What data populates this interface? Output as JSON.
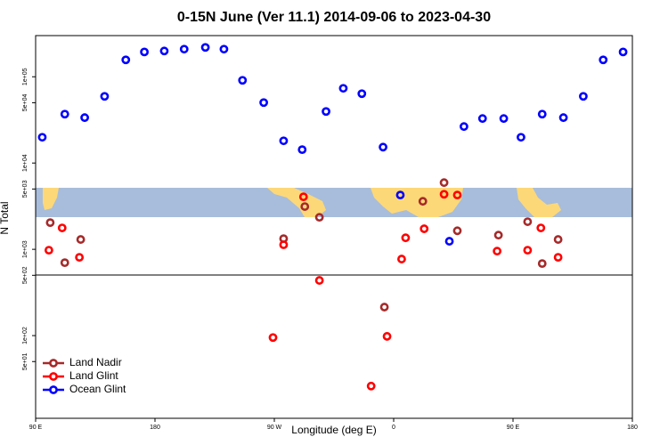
{
  "chart_data": {
    "type": "scatter",
    "title": "0-15N June (Ver 11.1)   2014-09-06 to 2023-04-30",
    "x_label": "Longitude (deg E)",
    "y_label": "N Total",
    "log_y": true,
    "legend": "lower left",
    "xlim": [
      90,
      540
    ],
    "xticks": [
      {
        "value": 90,
        "label": "90 E"
      },
      {
        "value": 180,
        "label": "180"
      },
      {
        "value": 270,
        "label": "90 W"
      },
      {
        "value": 360,
        "label": "0"
      },
      {
        "value": 450,
        "label": "90 E"
      },
      {
        "value": 540,
        "label": "180"
      }
    ],
    "ylim": [
      11,
      300000
    ],
    "yticks": [
      {
        "value": 50,
        "label": "5e+01"
      },
      {
        "value": 100,
        "label": "1e+02"
      },
      {
        "value": 500,
        "label": "5e+02"
      },
      {
        "value": 1000,
        "label": "1e+03"
      },
      {
        "value": 5000,
        "label": "5e+03"
      },
      {
        "value": 10000,
        "label": "1e+04"
      },
      {
        "value": 50000,
        "label": "5e+04"
      },
      {
        "value": 100000,
        "label": "1e+05"
      }
    ],
    "series": [
      {
        "name": "Land Nadir",
        "color": "#a52a2a",
        "x": [
          101,
          112,
          124,
          277,
          293,
          304,
          353,
          382,
          398,
          408,
          439,
          461,
          472,
          484
        ],
        "values": [
          2040,
          700,
          1300,
          1330,
          3130,
          2350,
          214,
          3600,
          5930,
          1640,
          1460,
          2090,
          684,
          1300
        ]
      },
      {
        "name": "Land Glint",
        "color": "#ff0000",
        "x": [
          100,
          110,
          123,
          277,
          292,
          304,
          269,
          355,
          343,
          366,
          369,
          383,
          398,
          408,
          438,
          461,
          471,
          484
        ],
        "values": [
          977,
          1770,
          808,
          1130,
          4060,
          436,
          95,
          98,
          26,
          771,
          1360,
          1730,
          4350,
          4260,
          953,
          977,
          1770,
          808
        ]
      },
      {
        "name": "Ocean Glint",
        "color": "#0000ff",
        "x": [
          95,
          112,
          127,
          142,
          158,
          172,
          187,
          202,
          218,
          232,
          246,
          262,
          277,
          291,
          309,
          322,
          336,
          352,
          365,
          402,
          413,
          427,
          443,
          456,
          472,
          488,
          503,
          518,
          533
        ],
        "values": [
          19900,
          36900,
          33600,
          59300,
          157000,
          194000,
          199000,
          209000,
          219000,
          209000,
          91000,
          50200,
          18100,
          14300,
          39600,
          73500,
          63700,
          15300,
          4260,
          1240,
          26500,
          32800,
          32800,
          19900,
          36900,
          33600,
          59300,
          157000,
          194000
        ]
      }
    ]
  }
}
